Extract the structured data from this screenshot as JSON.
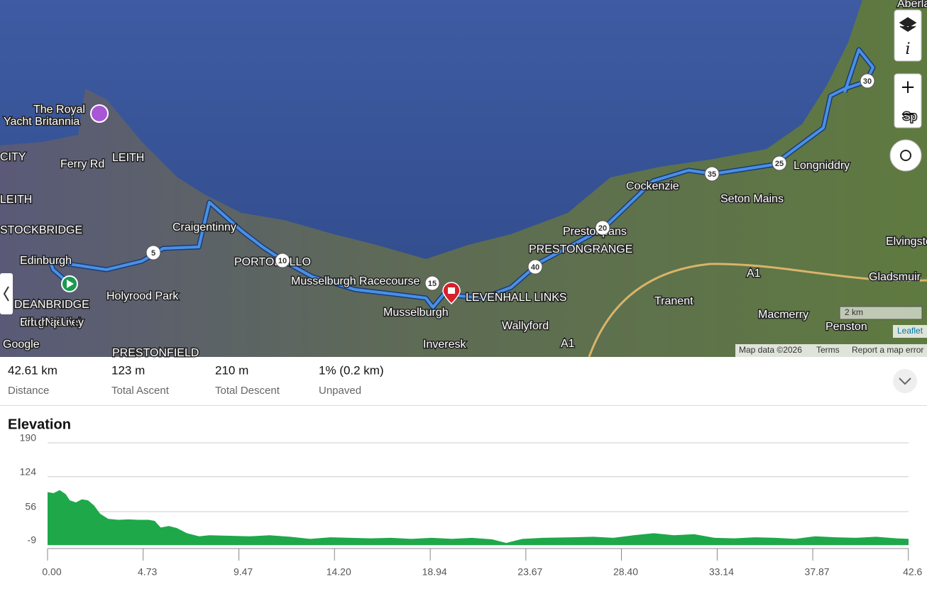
{
  "map": {
    "labels": [
      "The Royal",
      "Yacht Britannia",
      "LEITH",
      "Ferry Rd",
      "Craigentinny",
      "Edinburgh",
      "Holyrood Park",
      "PORTOBELLO",
      "Musselburgh Racecourse",
      "Musselburgh",
      "LEVENHALL LINKS",
      "Inveresk",
      "Wallyford",
      "Prestonpans",
      "PRESTONGRANGE",
      "Cockenzie",
      "Seton Mains",
      "Longniddry",
      "Tranent",
      "Macmerry",
      "Penston",
      "Elvingston",
      "Gladsmuir",
      "A1",
      "A1",
      "Edinburgh Napier University",
      "PRESTONFIELD",
      "Aberlady",
      "Sp",
      "CITY",
      "LEITH",
      "STOCKBRIDGE",
      "DEANBRIDGE"
    ],
    "route_markers": [
      "5",
      "10",
      "15",
      "20",
      "25",
      "30",
      "35",
      "40"
    ],
    "controls": [
      "i",
      "+",
      "−"
    ],
    "scale": "2 km",
    "google": "Google",
    "leaflet": "Leaflet",
    "attribution": [
      "Map data ©2026",
      "Terms",
      "Report a map error"
    ]
  },
  "stats": [
    {
      "value": "42.61 km",
      "label": "Distance"
    },
    {
      "value": "123 m",
      "label": "Total Ascent"
    },
    {
      "value": "210 m",
      "label": "Total Descent"
    },
    {
      "value": "1% (0.2 km)",
      "label": "Unpaved"
    }
  ],
  "chart_data": {
    "type": "area",
    "title": "Elevation",
    "color": "#1ea84a",
    "grid": true,
    "x": [
      0,
      0.3,
      0.6,
      0.9,
      1.1,
      1.4,
      1.7,
      2.0,
      2.3,
      2.6,
      3.0,
      3.5,
      4.0,
      4.5,
      5.0,
      5.3,
      5.6,
      6.0,
      6.4,
      6.9,
      7.5,
      8.0,
      9.0,
      10.0,
      11.0,
      12.0,
      13.0,
      14.0,
      15.0,
      16.0,
      17.0,
      18.0,
      19.0,
      20.0,
      21.0,
      22.0,
      22.7,
      23.5,
      24.5,
      26.0,
      27.0,
      28.0,
      29.0,
      30.0,
      31.0,
      32.0,
      33.0,
      34.0,
      35.0,
      36.0,
      37.0,
      38.0,
      39.0,
      40.0,
      41.0,
      42.0,
      42.61
    ],
    "values": [
      94,
      92,
      98,
      90,
      78,
      74,
      80,
      78,
      68,
      52,
      42,
      40,
      41,
      40,
      40,
      38,
      25,
      28,
      24,
      14,
      8,
      10,
      9,
      8,
      10,
      7,
      3,
      6,
      5,
      4,
      5,
      3,
      5,
      3,
      5,
      2,
      -5,
      3,
      5,
      6,
      7,
      5,
      10,
      14,
      10,
      12,
      5,
      4,
      6,
      5,
      3,
      8,
      6,
      5,
      7,
      4,
      3
    ],
    "xlim": [
      0,
      42.61
    ],
    "ylim": [
      -9,
      190
    ],
    "yticks": [
      190,
      124,
      56,
      -9
    ],
    "xticks": [
      {
        "value": 0,
        "label": "0.00"
      },
      4.73,
      9.47,
      {
        "value": 14.2,
        "label": "14.20"
      },
      18.94,
      23.67,
      {
        "value": 28.4,
        "label": "28.40"
      },
      33.14,
      37.87,
      42.6
    ]
  }
}
